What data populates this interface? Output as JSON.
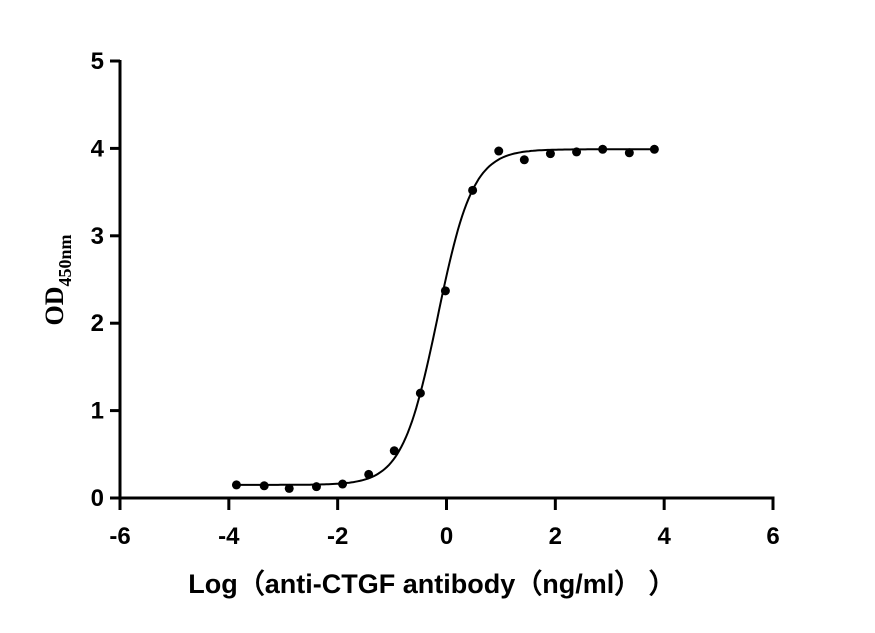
{
  "chart_data": {
    "type": "scatter",
    "xlabel": "Log（anti-CTGF antibody（ng/ml）  ）",
    "ylabel": {
      "main": "OD",
      "subscript": "450nm"
    },
    "xlim": [
      -6,
      6
    ],
    "ylim": [
      0,
      5
    ],
    "xticks": [
      -6,
      -4,
      -2,
      0,
      2,
      4,
      6
    ],
    "yticks": [
      0,
      1,
      2,
      3,
      4,
      5
    ],
    "grid": false,
    "series": [
      {
        "x": [
          -3.86,
          -3.35,
          -2.89,
          -2.39,
          -1.91,
          -1.43,
          -0.96,
          -0.48,
          -0.02,
          0.48,
          0.96,
          1.43,
          1.91,
          2.39,
          2.87,
          3.36,
          3.82
        ],
        "y": [
          0.15,
          0.14,
          0.11,
          0.13,
          0.16,
          0.27,
          0.54,
          1.2,
          2.37,
          3.52,
          3.97,
          3.87,
          3.94,
          3.96,
          3.99,
          3.95,
          3.99
        ],
        "color": "#000000"
      }
    ],
    "fit": {
      "type": "4PL",
      "bottom": 0.15,
      "top": 3.99,
      "logEC50": -0.163,
      "hill": 1.34,
      "xrange": [
        -3.86,
        3.82
      ]
    }
  }
}
